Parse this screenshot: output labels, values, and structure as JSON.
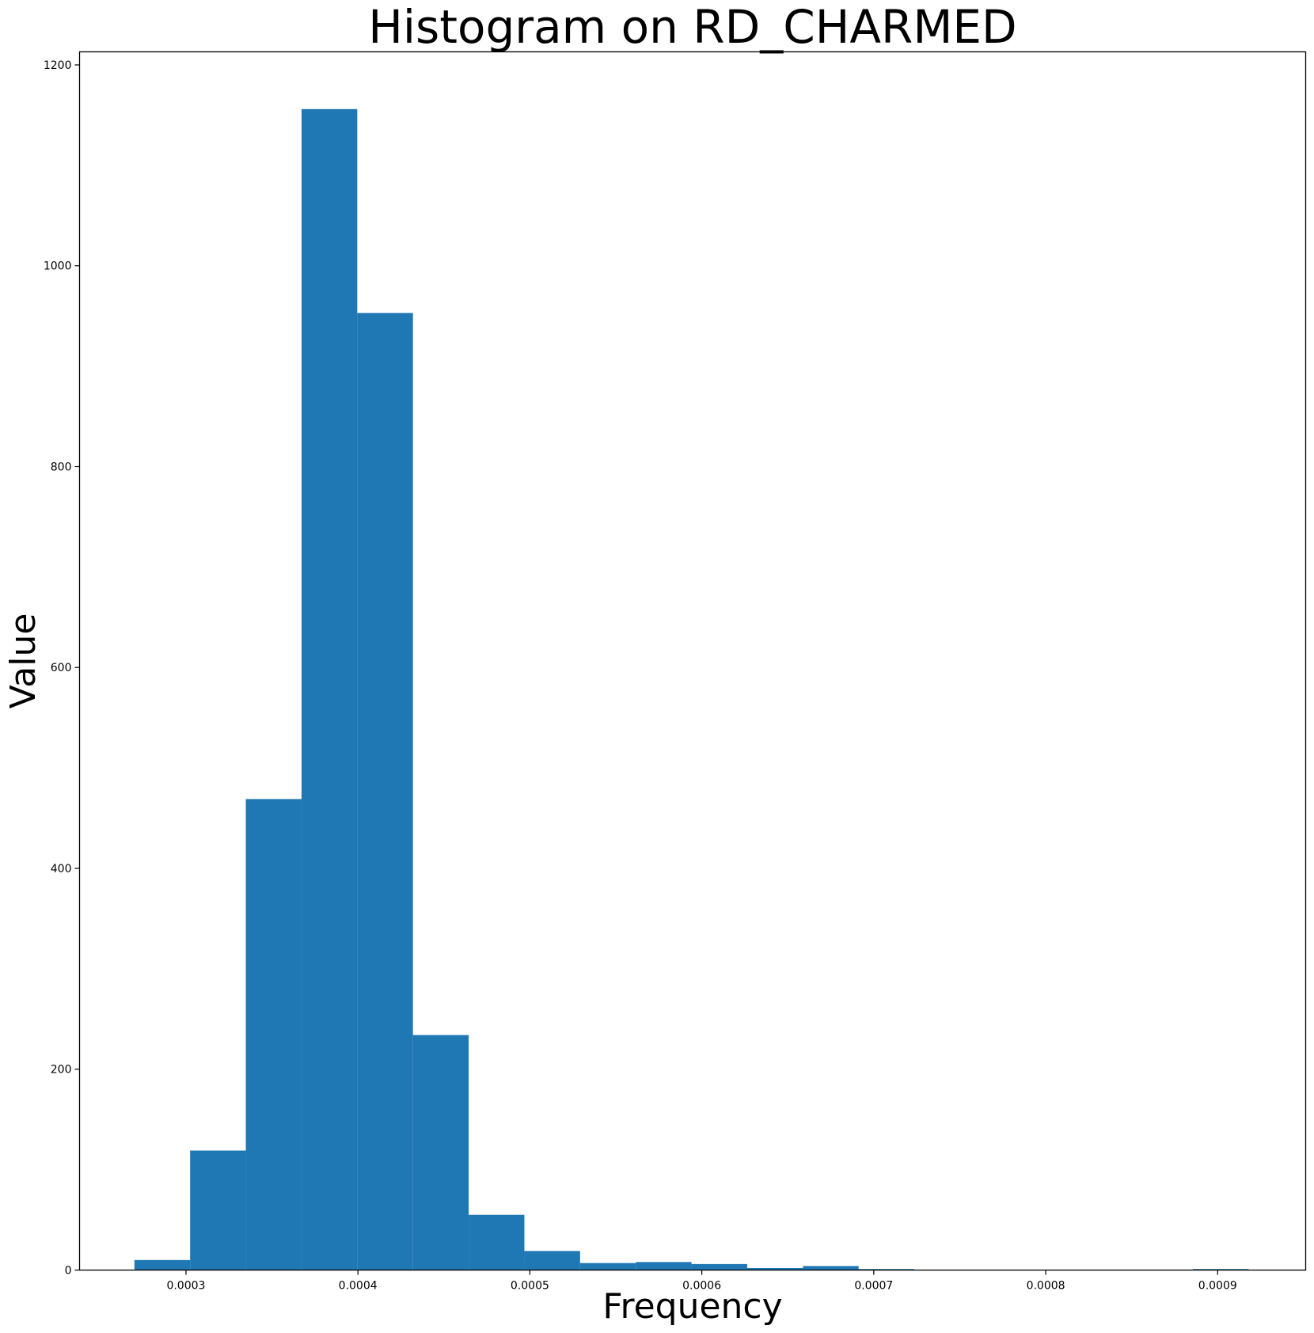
{
  "chart_data": {
    "type": "bar",
    "title": "Histogram on RD_CHARMED",
    "xlabel": "Frequency",
    "ylabel": "Value",
    "xlim": [
      0.0002381,
      0.0009512
    ],
    "ylim": [
      0,
      1213
    ],
    "xticks": [
      "0.0003",
      "0.0004",
      "0.0005",
      "0.0006",
      "0.0007",
      "0.0008",
      "0.0009"
    ],
    "xtick_values": [
      0.0003,
      0.0004,
      0.0005,
      0.0006,
      0.0007,
      0.0008,
      0.0009
    ],
    "yticks": [
      "0",
      "200",
      "400",
      "600",
      "800",
      "1000",
      "1200"
    ],
    "ytick_values": [
      0,
      200,
      400,
      600,
      800,
      1000,
      1200
    ],
    "bin_edges": [
      0.00027,
      0.0003024,
      0.0003348,
      0.0003672,
      0.0003996,
      0.000432,
      0.0004644,
      0.0004968,
      0.0005292,
      0.0005616,
      0.000594,
      0.0006264,
      0.0006588,
      0.0006912,
      0.0007236,
      0.000756,
      0.0007884,
      0.0008208,
      0.0008532,
      0.0008856,
      0.000918
    ],
    "values": [
      10,
      119,
      469,
      1156,
      953,
      234,
      55,
      19,
      7,
      8,
      6,
      2,
      4,
      1,
      0,
      0,
      0,
      0,
      0,
      1
    ],
    "color": "#1f77b4",
    "grid": false,
    "legend": "none"
  }
}
